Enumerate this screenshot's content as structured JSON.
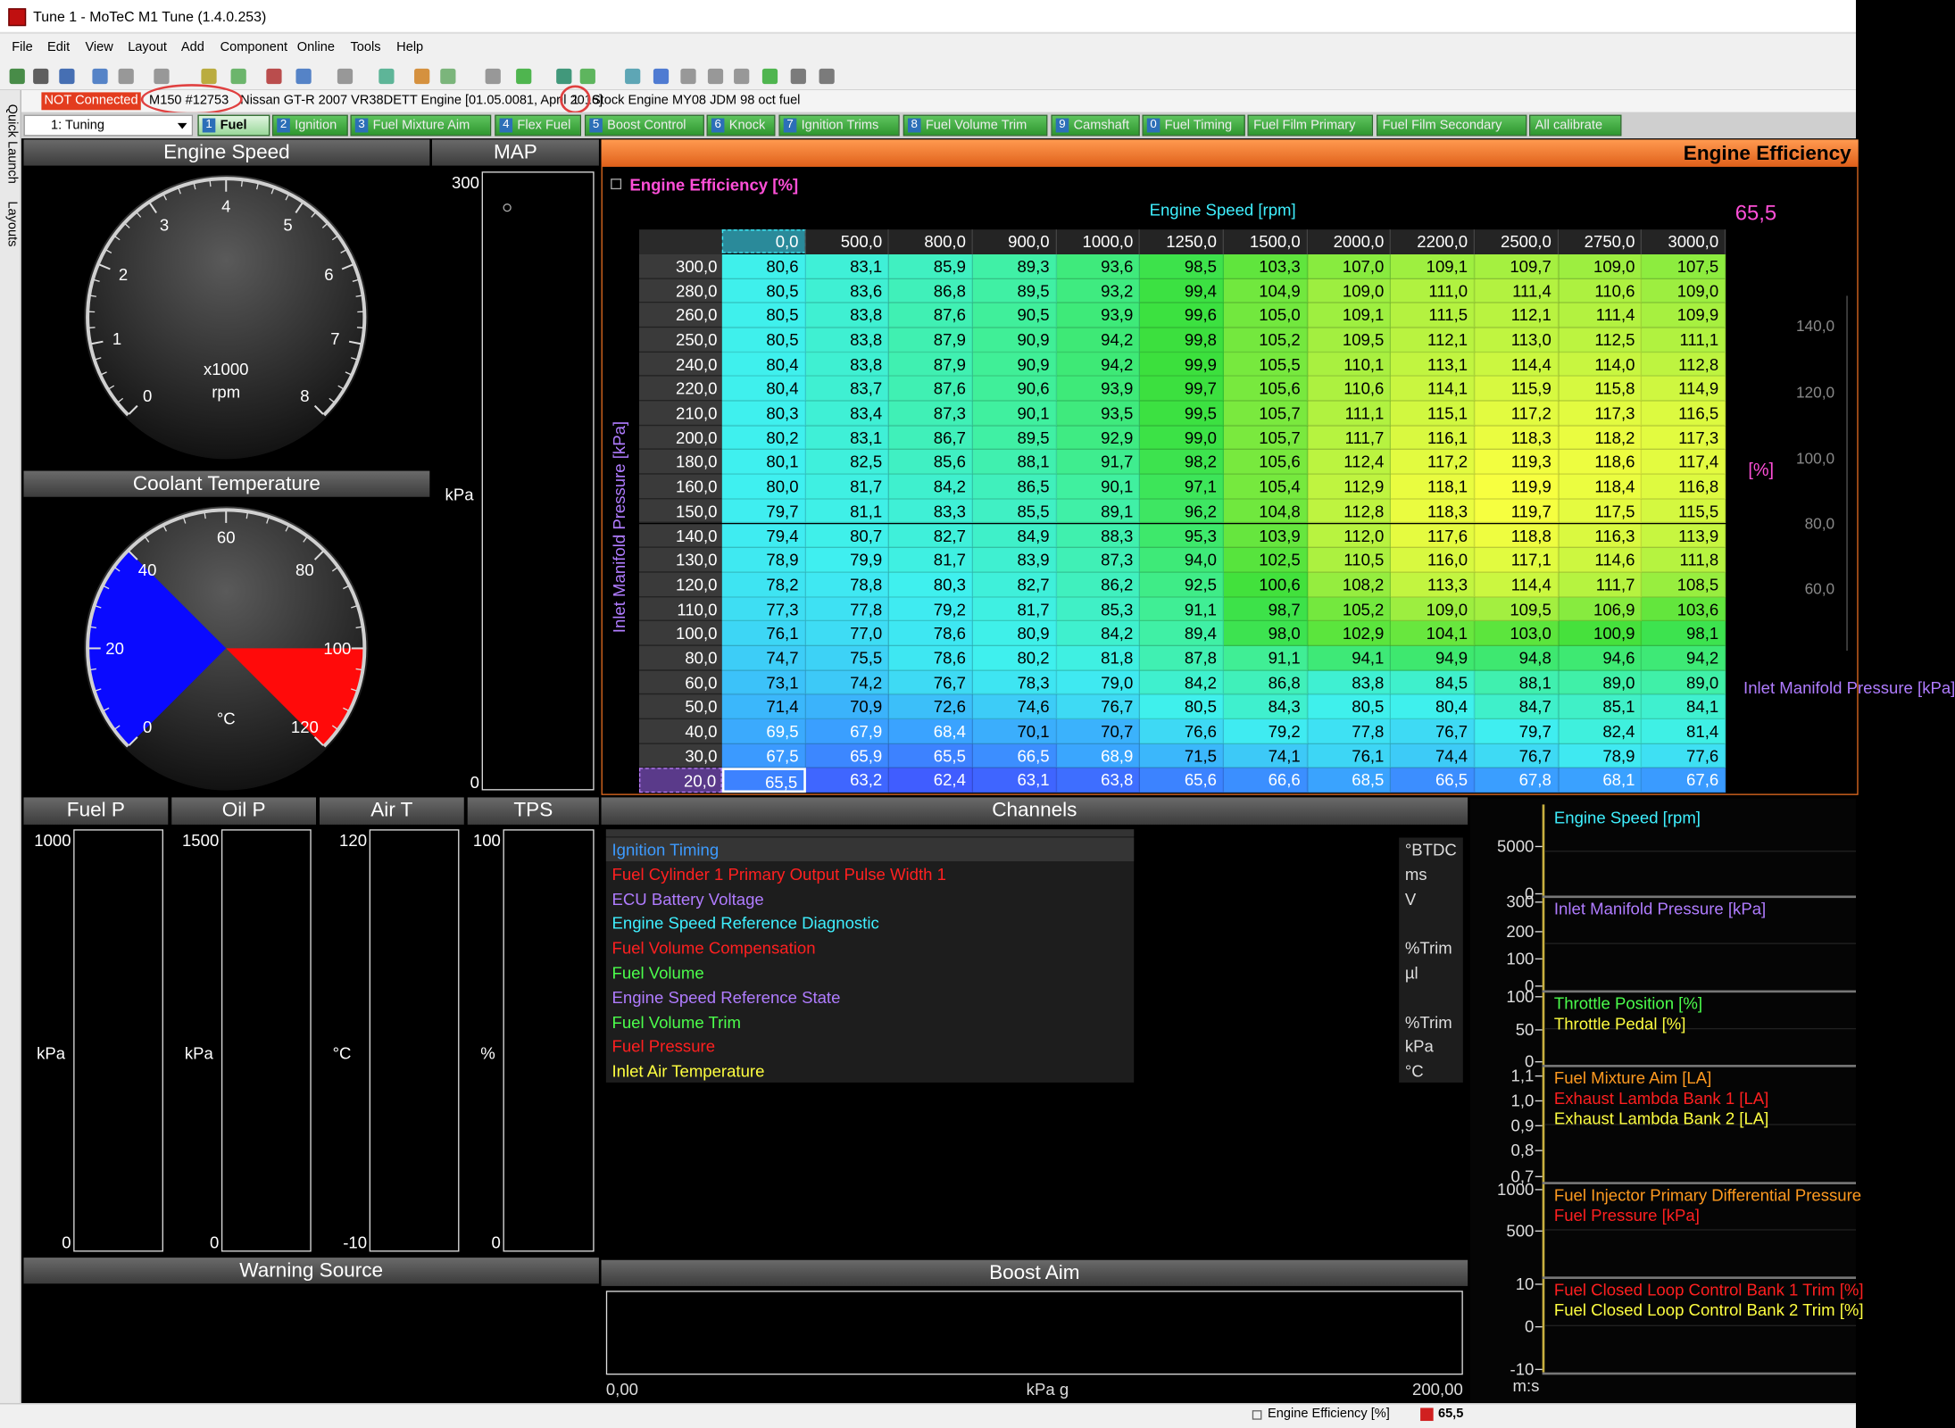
{
  "window": {
    "title": "Tune 1 - MoTeC M1 Tune (1.4.0.253)"
  },
  "menu": [
    "File",
    "Edit",
    "View",
    "Layout",
    "Add",
    "Component",
    "Online",
    "Tools",
    "Help"
  ],
  "status_line": {
    "connection": "NOT Connected",
    "device": "M150 #12753",
    "engine": "Nissan GT-R 2007 VR38DETT Engine [01.05.0081, April 2016]",
    "version": "1",
    "tune": "Stock Engine MY08 JDM 98 oct fuel"
  },
  "side_bar": [
    "Quick Launch",
    "Layouts"
  ],
  "workbook": "1: Tuning",
  "tabs": [
    {
      "key": "1",
      "label": "Fuel"
    },
    {
      "key": "2",
      "label": "Ignition"
    },
    {
      "key": "3",
      "label": "Fuel Mixture Aim"
    },
    {
      "key": "4",
      "label": "Flex Fuel"
    },
    {
      "key": "5",
      "label": "Boost Control"
    },
    {
      "key": "6",
      "label": "Knock"
    },
    {
      "key": "7",
      "label": "Ignition Trims"
    },
    {
      "key": "8",
      "label": "Fuel Volume Trim"
    },
    {
      "key": "9",
      "label": "Camshaft"
    },
    {
      "key": "0",
      "label": "Fuel Timing"
    },
    {
      "label": "Fuel Film Primary"
    },
    {
      "label": "Fuel Film Secondary"
    },
    {
      "label": "All calibrate"
    }
  ],
  "gauges": {
    "engine_speed": {
      "title": "Engine Speed",
      "ticks": [
        "0",
        "1",
        "2",
        "3",
        "4",
        "5",
        "6",
        "7",
        "8"
      ],
      "scale": "x1000",
      "unit": "rpm"
    },
    "coolant": {
      "title": "Coolant Temperature",
      "ticks": [
        "0",
        "20",
        "40",
        "60",
        "80",
        "100",
        "120"
      ],
      "unit": "°C"
    }
  },
  "map": {
    "title": "MAP",
    "max": "300",
    "min": "0",
    "unit": "kPa"
  },
  "table": {
    "header": "Engine Efficiency",
    "title": "Engine Efficiency [%]",
    "x_axis": "Engine Speed [rpm]",
    "y_axis": "Inlet Manifold Pressure [kPa]",
    "columns": [
      "0,0",
      "500,0",
      "800,0",
      "900,0",
      "1000,0",
      "1250,0",
      "1500,0",
      "2000,0",
      "2200,0",
      "2500,0",
      "2750,0",
      "3000,0"
    ],
    "rows": [
      {
        "label": "300,0",
        "cells": [
          "80,6",
          "83,1",
          "85,9",
          "89,3",
          "93,6",
          "98,5",
          "103,3",
          "107,0",
          "109,1",
          "109,7",
          "109,0",
          "107,5"
        ]
      },
      {
        "label": "280,0",
        "cells": [
          "80,5",
          "83,6",
          "86,8",
          "89,5",
          "93,2",
          "99,4",
          "104,9",
          "109,0",
          "111,0",
          "111,4",
          "110,6",
          "109,0"
        ]
      },
      {
        "label": "260,0",
        "cells": [
          "80,5",
          "83,8",
          "87,6",
          "90,5",
          "93,9",
          "99,6",
          "105,0",
          "109,1",
          "111,5",
          "112,1",
          "111,4",
          "109,9"
        ]
      },
      {
        "label": "250,0",
        "cells": [
          "80,5",
          "83,8",
          "87,9",
          "90,9",
          "94,2",
          "99,8",
          "105,2",
          "109,5",
          "112,1",
          "113,0",
          "112,5",
          "111,1"
        ]
      },
      {
        "label": "240,0",
        "cells": [
          "80,4",
          "83,8",
          "87,9",
          "90,9",
          "94,2",
          "99,9",
          "105,5",
          "110,1",
          "113,1",
          "114,4",
          "114,0",
          "112,8"
        ]
      },
      {
        "label": "220,0",
        "cells": [
          "80,4",
          "83,7",
          "87,6",
          "90,6",
          "93,9",
          "99,7",
          "105,6",
          "110,6",
          "114,1",
          "115,9",
          "115,8",
          "114,9"
        ]
      },
      {
        "label": "210,0",
        "cells": [
          "80,3",
          "83,4",
          "87,3",
          "90,1",
          "93,5",
          "99,5",
          "105,7",
          "111,1",
          "115,1",
          "117,2",
          "117,3",
          "116,5"
        ]
      },
      {
        "label": "200,0",
        "cells": [
          "80,2",
          "83,1",
          "86,7",
          "89,5",
          "92,9",
          "99,0",
          "105,7",
          "111,7",
          "116,1",
          "118,3",
          "118,2",
          "117,3"
        ]
      },
      {
        "label": "180,0",
        "cells": [
          "80,1",
          "82,5",
          "85,6",
          "88,1",
          "91,7",
          "98,2",
          "105,6",
          "112,4",
          "117,2",
          "119,3",
          "118,6",
          "117,4"
        ]
      },
      {
        "label": "160,0",
        "cells": [
          "80,0",
          "81,7",
          "84,2",
          "86,5",
          "90,1",
          "97,1",
          "105,4",
          "112,9",
          "118,1",
          "119,9",
          "118,4",
          "116,8"
        ]
      },
      {
        "label": "150,0",
        "cells": [
          "79,7",
          "81,1",
          "83,3",
          "85,5",
          "89,1",
          "96,2",
          "104,8",
          "112,8",
          "118,3",
          "119,7",
          "117,5",
          "115,5"
        ]
      },
      {
        "label": "140,0",
        "cells": [
          "79,4",
          "80,7",
          "82,7",
          "84,9",
          "88,3",
          "95,3",
          "103,9",
          "112,0",
          "117,6",
          "118,8",
          "116,3",
          "113,9"
        ]
      },
      {
        "label": "130,0",
        "cells": [
          "78,9",
          "79,9",
          "81,7",
          "83,9",
          "87,3",
          "94,0",
          "102,5",
          "110,5",
          "116,0",
          "117,1",
          "114,6",
          "111,8"
        ]
      },
      {
        "label": "120,0",
        "cells": [
          "78,2",
          "78,8",
          "80,3",
          "82,7",
          "86,2",
          "92,5",
          "100,6",
          "108,2",
          "113,3",
          "114,4",
          "111,7",
          "108,5"
        ]
      },
      {
        "label": "110,0",
        "cells": [
          "77,3",
          "77,8",
          "79,2",
          "81,7",
          "85,3",
          "91,1",
          "98,7",
          "105,2",
          "109,0",
          "109,5",
          "106,9",
          "103,6"
        ]
      },
      {
        "label": "100,0",
        "cells": [
          "76,1",
          "77,0",
          "78,6",
          "80,9",
          "84,2",
          "89,4",
          "98,0",
          "102,9",
          "104,1",
          "103,0",
          "100,9",
          "98,1"
        ]
      },
      {
        "label": "80,0",
        "cells": [
          "74,7",
          "75,5",
          "78,6",
          "80,2",
          "81,8",
          "87,8",
          "91,1",
          "94,1",
          "94,9",
          "94,8",
          "94,6",
          "94,2"
        ]
      },
      {
        "label": "60,0",
        "cells": [
          "73,1",
          "74,2",
          "76,7",
          "78,3",
          "79,0",
          "84,2",
          "86,8",
          "83,8",
          "84,5",
          "88,1",
          "89,0",
          "89,0"
        ]
      },
      {
        "label": "50,0",
        "cells": [
          "71,4",
          "70,9",
          "72,6",
          "74,6",
          "76,7",
          "80,5",
          "84,3",
          "80,5",
          "80,4",
          "84,7",
          "85,1",
          "84,1"
        ]
      },
      {
        "label": "40,0",
        "cells": [
          "69,5",
          "67,9",
          "68,4",
          "70,1",
          "70,7",
          "76,6",
          "79,2",
          "77,8",
          "76,7",
          "79,7",
          "82,4",
          "81,4"
        ]
      },
      {
        "label": "30,0",
        "cells": [
          "67,5",
          "65,9",
          "65,5",
          "66,5",
          "68,9",
          "71,5",
          "74,1",
          "76,1",
          "74,4",
          "76,7",
          "78,9",
          "77,6"
        ]
      },
      {
        "label": "20,0",
        "cells": [
          "65,5",
          "63,2",
          "62,4",
          "63,1",
          "63,8",
          "65,6",
          "66,6",
          "68,5",
          "66,5",
          "67,8",
          "68,1",
          "67,6"
        ]
      }
    ],
    "current_value": "65,5",
    "graph_unit": "[%]",
    "graph_ticks": [
      "140,0",
      "120,0",
      "100,0",
      "80,0",
      "60,0"
    ],
    "graph_axis": "Inlet Manifold Pressure [kPa]"
  },
  "bar_gauges": [
    {
      "title": "Fuel P",
      "max": "1000",
      "min": "0",
      "unit": "kPa"
    },
    {
      "title": "Oil P",
      "max": "1500",
      "min": "0",
      "unit": "kPa"
    },
    {
      "title": "Air T",
      "max": "120",
      "min": "-10",
      "unit": "°C"
    },
    {
      "title": "TPS",
      "max": "100",
      "min": "0",
      "unit": "%"
    }
  ],
  "warning": {
    "title": "Warning Source"
  },
  "channels": {
    "title": "Channels",
    "items": [
      {
        "name": "Ignition Timing",
        "unit": "°BTDC",
        "color": "#3d9bff"
      },
      {
        "name": "Fuel Cylinder 1 Primary Output Pulse Width 1",
        "unit": "ms",
        "color": "#ff2020"
      },
      {
        "name": "ECU Battery Voltage",
        "unit": "V",
        "color": "#b07cff"
      },
      {
        "name": "Engine Speed Reference Diagnostic",
        "color": "#3ff0ff"
      },
      {
        "name": "Fuel Volume Compensation",
        "unit": "%Trim",
        "color": "#ff2020"
      },
      {
        "name": "Fuel Volume",
        "unit": "µl",
        "color": "#4cff4c"
      },
      {
        "name": "Engine Speed Reference State",
        "color": "#b07cff"
      },
      {
        "name": "Fuel Volume Trim",
        "unit": "%Trim",
        "color": "#4cff4c"
      },
      {
        "name": "Fuel Pressure",
        "unit": "kPa",
        "color": "#ff2020"
      },
      {
        "name": "Inlet Air Temperature",
        "unit": "°C",
        "color": "#ffff40"
      }
    ]
  },
  "boost": {
    "title": "Boost Aim",
    "min": "0,00",
    "unit": "kPa g",
    "max": "200,00"
  },
  "time_plots": {
    "time_unit": "m:s",
    "panels": [
      {
        "ticks": [
          "5000",
          "0"
        ],
        "series": [
          {
            "name": "Engine Speed [rpm]",
            "color": "#3ff0ff"
          }
        ]
      },
      {
        "ticks": [
          "300",
          "200",
          "100",
          "0"
        ],
        "series": [
          {
            "name": "Inlet Manifold Pressure [kPa]",
            "color": "#b07cff"
          }
        ]
      },
      {
        "ticks": [
          "100",
          "50",
          "0"
        ],
        "series": [
          {
            "name": "Throttle Position [%]",
            "color": "#4cff4c"
          },
          {
            "name": "Throttle Pedal [%]",
            "color": "#ffff40"
          }
        ]
      },
      {
        "ticks": [
          "1,1",
          "1,0",
          "0,9",
          "0,8",
          "0,7"
        ],
        "series": [
          {
            "name": "Fuel Mixture Aim [LA]",
            "color": "#ff9a20"
          },
          {
            "name": "Exhaust Lambda Bank 1 [LA]",
            "color": "#ff2020"
          },
          {
            "name": "Exhaust Lambda Bank 2 [LA]",
            "color": "#ffff40"
          }
        ]
      },
      {
        "ticks": [
          "1000",
          "500"
        ],
        "series": [
          {
            "name": "Fuel Injector Primary Differential Pressure",
            "color": "#ff9a20"
          },
          {
            "name": "Fuel Pressure [kPa]",
            "color": "#ff2020"
          }
        ]
      },
      {
        "ticks": [
          "10",
          "0",
          "-10"
        ],
        "series": [
          {
            "name": "Fuel Closed Loop Control Bank 1 Trim [%]",
            "color": "#ff2020"
          },
          {
            "name": "Fuel Closed Loop Control Bank 2 Trim [%]",
            "color": "#ffff40"
          }
        ]
      }
    ]
  },
  "status_bar": {
    "label": "Engine Efficiency [%]",
    "value": "65,5"
  }
}
